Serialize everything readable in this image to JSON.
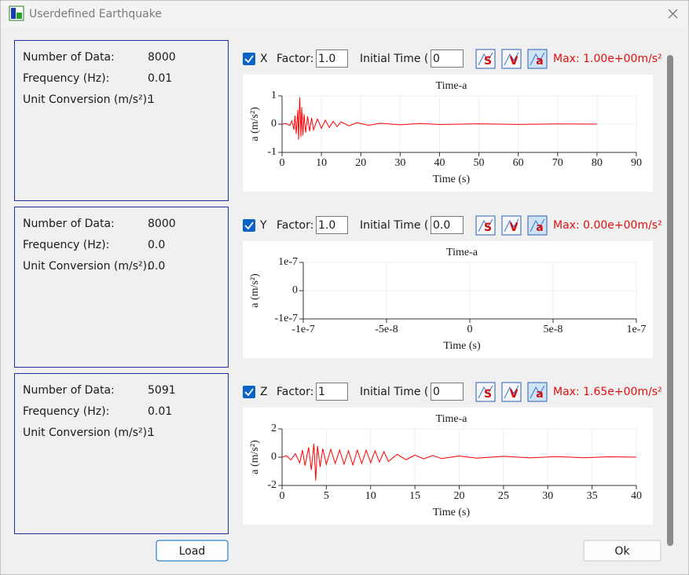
{
  "window": {
    "title": "Userdefined Earthquake"
  },
  "tool_icons": [
    "S",
    "V",
    "a"
  ],
  "panels": [
    {
      "info": [
        [
          "Number of Data:",
          "8000"
        ],
        [
          "Frequency (Hz):",
          "0.01"
        ],
        [
          "Unit Conversion (m/s²):",
          "1"
        ]
      ],
      "controls": {
        "axis": "X",
        "factor_label": "Factor:",
        "factor": "1.0",
        "initial_time_label": "Initial Time (",
        "initial_time": "0",
        "max": "Max: 1.00e+00m/s²"
      },
      "chart": {
        "type": "line",
        "title": "Time-a",
        "x_label": "Time (s)",
        "y_label": "a (m/s²)",
        "color": "#ff0000",
        "grid": true,
        "xlim": [
          0,
          90
        ],
        "xticks": [
          0,
          10,
          20,
          30,
          40,
          50,
          60,
          70,
          80,
          90
        ],
        "ylim": [
          -1,
          1
        ],
        "yticks": [
          -1,
          0,
          1
        ],
        "x": [
          0,
          1,
          2,
          2.5,
          3,
          3.3,
          3.6,
          4,
          4.2,
          4.5,
          4.8,
          5,
          5.3,
          5.6,
          6,
          6.5,
          7,
          7.5,
          8,
          9,
          10,
          11,
          12,
          13,
          14,
          15,
          17,
          19,
          22,
          25,
          30,
          35,
          40,
          50,
          60,
          70,
          80
        ],
        "values": [
          0,
          0.02,
          -0.05,
          0.12,
          -0.2,
          0.3,
          -0.35,
          0.5,
          -0.55,
          0.95,
          -0.45,
          0.6,
          -0.4,
          0.35,
          -0.3,
          0.28,
          -0.25,
          0.22,
          -0.2,
          0.18,
          -0.15,
          0.14,
          -0.12,
          0.1,
          -0.09,
          0.08,
          -0.06,
          0.05,
          -0.04,
          0.03,
          -0.025,
          0.02,
          -0.015,
          0.01,
          -0.01,
          0.008,
          0
        ]
      }
    },
    {
      "info": [
        [
          "Number of Data:",
          "8000"
        ],
        [
          "Frequency (Hz):",
          "0.0"
        ],
        [
          "Unit Conversion (m/s²):",
          "0.0"
        ]
      ],
      "controls": {
        "axis": "Y",
        "factor_label": "Factor:",
        "factor": "1.0",
        "initial_time_label": "Initial Time (",
        "initial_time": "0.0",
        "max": "Max: 0.00e+00m/s²"
      },
      "chart": {
        "type": "line",
        "title": "Time-a",
        "x_label": "Time (s)",
        "y_label": "a (m/s²)",
        "color": "#ff0000",
        "grid": true,
        "xlim": [
          -1e-07,
          1e-07
        ],
        "xticks": [
          -1e-07,
          -5e-08,
          0,
          5e-08,
          1e-07
        ],
        "ylim": [
          -1e-07,
          1e-07
        ],
        "yticks": [
          -1e-07,
          0,
          1e-07
        ],
        "x": [],
        "values": []
      }
    },
    {
      "info": [
        [
          "Number of Data:",
          "5091"
        ],
        [
          "Frequency (Hz):",
          "0.01"
        ],
        [
          "Unit Conversion (m/s²):",
          "1"
        ]
      ],
      "controls": {
        "axis": "Z",
        "factor_label": "Factor:",
        "factor": "1",
        "initial_time_label": "Initial Time (",
        "initial_time": "0",
        "max": "Max: 1.65e+00m/s²"
      },
      "chart": {
        "type": "line",
        "title": "Time-a",
        "x_label": "Time (s)",
        "y_label": "a (m/s²)",
        "color": "#ff0000",
        "grid": true,
        "xlim": [
          0,
          40
        ],
        "xticks": [
          0,
          5,
          10,
          15,
          20,
          25,
          30,
          35,
          40
        ],
        "ylim": [
          -2,
          2
        ],
        "yticks": [
          -2,
          0,
          2
        ],
        "x": [
          0,
          0.5,
          1,
          1.5,
          2,
          2.3,
          2.6,
          3,
          3.3,
          3.6,
          3.8,
          4,
          4.3,
          4.6,
          5,
          5.5,
          6,
          6.5,
          7,
          7.5,
          8,
          8.5,
          9,
          9.5,
          10,
          10.5,
          11,
          11.5,
          12,
          13,
          14,
          15,
          16,
          17,
          18,
          20,
          22,
          25,
          28,
          31,
          34,
          37,
          40
        ],
        "values": [
          0,
          0.1,
          -0.2,
          0.25,
          -0.4,
          0.5,
          -0.6,
          0.7,
          -0.9,
          0.95,
          -1.65,
          0.8,
          -0.7,
          0.6,
          -0.5,
          0.55,
          -0.45,
          0.5,
          -0.5,
          0.45,
          -0.55,
          0.5,
          -0.45,
          0.5,
          -0.4,
          0.45,
          -0.35,
          0.4,
          -0.3,
          0.2,
          -0.18,
          0.15,
          -0.12,
          0.12,
          -0.1,
          0.08,
          -0.07,
          0.06,
          -0.05,
          0.04,
          -0.04,
          0.03,
          0
        ]
      }
    }
  ],
  "buttons": {
    "load": "Load",
    "ok": "Ok"
  }
}
